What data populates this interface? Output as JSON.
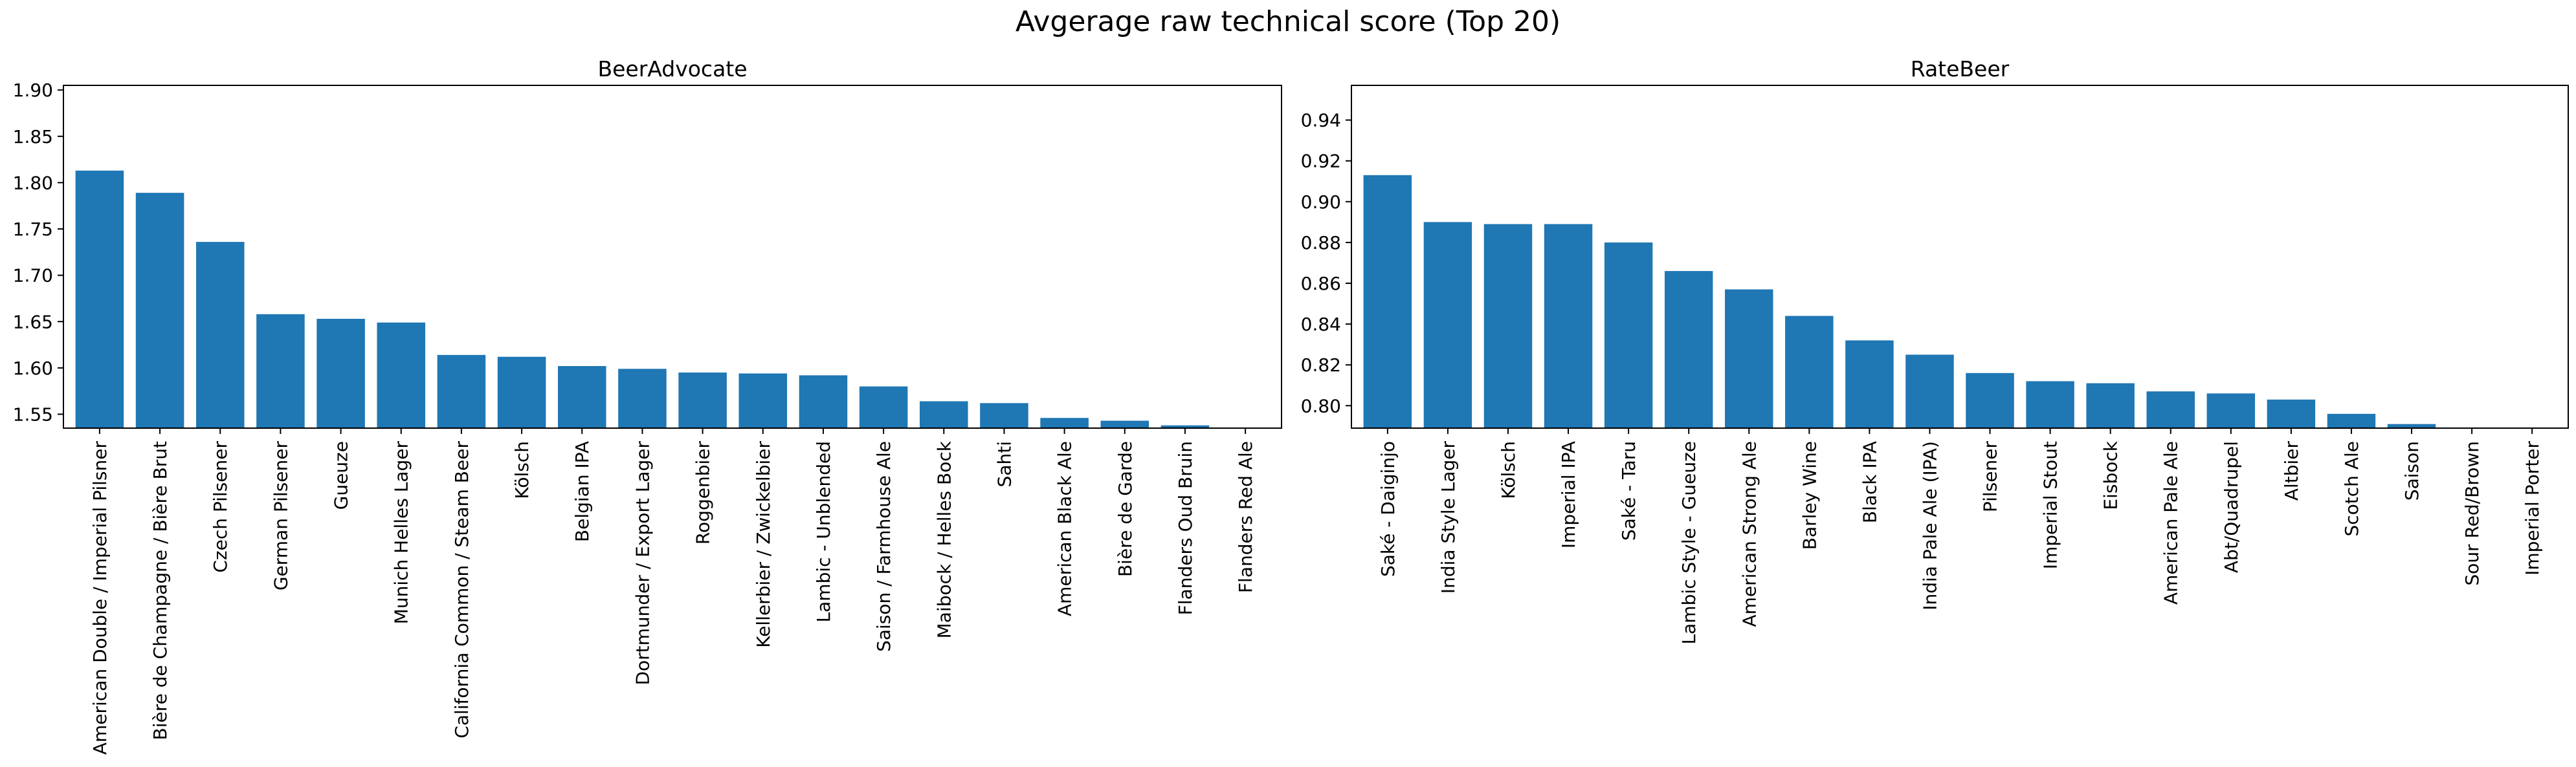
{
  "figure": {
    "title": "Avgerage raw technical score (Top 20)"
  },
  "colors": {
    "bar": "#1f77b4",
    "axis": "#000000",
    "background": "#ffffff"
  },
  "chart_data": [
    {
      "type": "bar",
      "title": "BeerAdvocate",
      "xlabel": "",
      "ylabel": "",
      "ylim": [
        1.535,
        1.905
      ],
      "yticks": [
        "1.55",
        "1.60",
        "1.65",
        "1.70",
        "1.75",
        "1.80",
        "1.85",
        "1.90"
      ],
      "categories": [
        "American Double / Imperial Pilsner",
        "Bière de Champagne / Bière Brut",
        "Czech Pilsener",
        "German Pilsener",
        "Gueuze",
        "Munich Helles Lager",
        "California Common / Steam Beer",
        "Kölsch",
        "Belgian IPA",
        "Dortmunder / Export Lager",
        "Roggenbier",
        "Kellerbier / Zwickelbier",
        "Lambic - Unblended",
        "Saison / Farmhouse Ale",
        "Maibock / Helles Bock",
        "Sahti",
        "American Black Ale",
        "Bière de Garde",
        "Flanders Oud Bruin",
        "Flanders Red Ale"
      ],
      "values": [
        1.813,
        1.789,
        1.736,
        1.658,
        1.653,
        1.649,
        1.614,
        1.612,
        1.602,
        1.599,
        1.595,
        1.594,
        1.592,
        1.58,
        1.564,
        1.562,
        1.546,
        1.543,
        1.538,
        1.532
      ]
    },
    {
      "type": "bar",
      "title": "RateBeer",
      "xlabel": "",
      "ylabel": "",
      "ylim": [
        0.789,
        0.957
      ],
      "yticks": [
        "0.80",
        "0.82",
        "0.84",
        "0.86",
        "0.88",
        "0.90",
        "0.92",
        "0.94"
      ],
      "categories": [
        "Saké - Daiginjo",
        "India Style Lager",
        "Kölsch",
        "Imperial IPA",
        "Saké - Taru",
        "Lambic Style - Gueuze",
        "American Strong Ale",
        "Barley Wine",
        "Black IPA",
        "India Pale Ale (IPA)",
        "Pilsener",
        "Imperial Stout",
        "Eisbock",
        "American Pale Ale",
        "Abt/Quadrupel",
        "Altbier",
        "Scotch Ale",
        "Saison",
        "Sour Red/Brown",
        "Imperial Porter"
      ],
      "values": [
        0.913,
        0.89,
        0.889,
        0.889,
        0.88,
        0.866,
        0.857,
        0.844,
        0.832,
        0.825,
        0.816,
        0.812,
        0.811,
        0.807,
        0.806,
        0.803,
        0.796,
        0.791,
        0.788,
        0.787
      ]
    }
  ]
}
